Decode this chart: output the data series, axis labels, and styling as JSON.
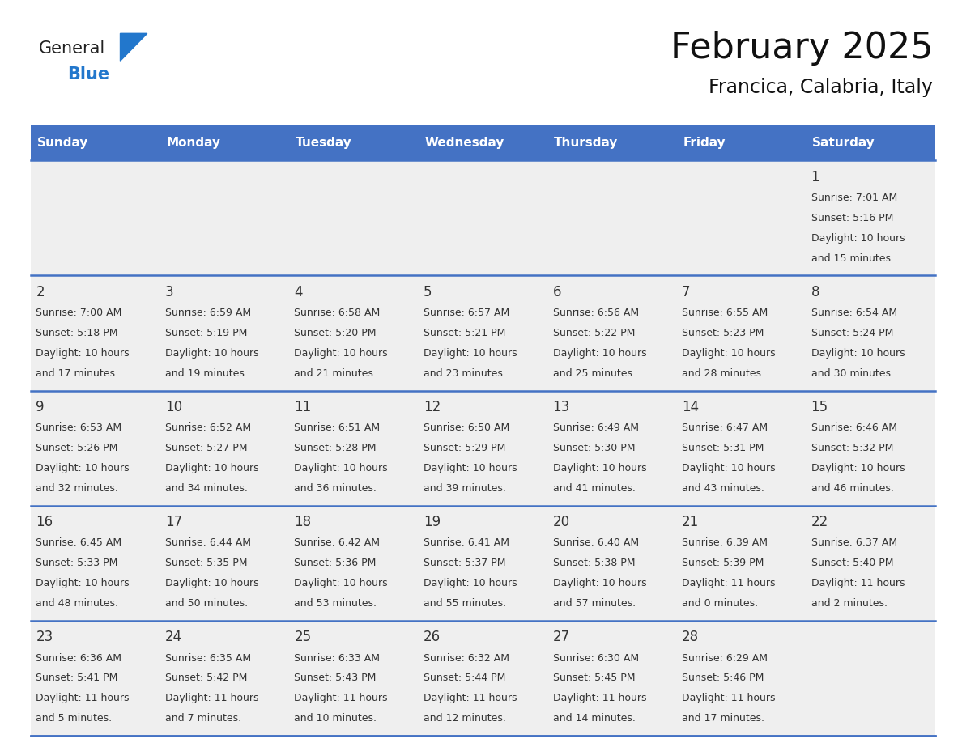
{
  "title": "February 2025",
  "subtitle": "Francica, Calabria, Italy",
  "days_of_week": [
    "Sunday",
    "Monday",
    "Tuesday",
    "Wednesday",
    "Thursday",
    "Friday",
    "Saturday"
  ],
  "header_bg": "#4472C4",
  "header_text": "#FFFFFF",
  "row_bg": "#EFEFEF",
  "separator_color": "#4472C4",
  "day_number_color": "#333333",
  "info_text_color": "#333333",
  "logo_text_color": "#222222",
  "logo_blue_color": "#2277CC",
  "calendar": [
    [
      null,
      null,
      null,
      null,
      null,
      null,
      {
        "day": 1,
        "sunrise": "7:01 AM",
        "sunset": "5:16 PM",
        "daylight": "10 hours and 15 minutes."
      }
    ],
    [
      {
        "day": 2,
        "sunrise": "7:00 AM",
        "sunset": "5:18 PM",
        "daylight": "10 hours and 17 minutes."
      },
      {
        "day": 3,
        "sunrise": "6:59 AM",
        "sunset": "5:19 PM",
        "daylight": "10 hours and 19 minutes."
      },
      {
        "day": 4,
        "sunrise": "6:58 AM",
        "sunset": "5:20 PM",
        "daylight": "10 hours and 21 minutes."
      },
      {
        "day": 5,
        "sunrise": "6:57 AM",
        "sunset": "5:21 PM",
        "daylight": "10 hours and 23 minutes."
      },
      {
        "day": 6,
        "sunrise": "6:56 AM",
        "sunset": "5:22 PM",
        "daylight": "10 hours and 25 minutes."
      },
      {
        "day": 7,
        "sunrise": "6:55 AM",
        "sunset": "5:23 PM",
        "daylight": "10 hours and 28 minutes."
      },
      {
        "day": 8,
        "sunrise": "6:54 AM",
        "sunset": "5:24 PM",
        "daylight": "10 hours and 30 minutes."
      }
    ],
    [
      {
        "day": 9,
        "sunrise": "6:53 AM",
        "sunset": "5:26 PM",
        "daylight": "10 hours and 32 minutes."
      },
      {
        "day": 10,
        "sunrise": "6:52 AM",
        "sunset": "5:27 PM",
        "daylight": "10 hours and 34 minutes."
      },
      {
        "day": 11,
        "sunrise": "6:51 AM",
        "sunset": "5:28 PM",
        "daylight": "10 hours and 36 minutes."
      },
      {
        "day": 12,
        "sunrise": "6:50 AM",
        "sunset": "5:29 PM",
        "daylight": "10 hours and 39 minutes."
      },
      {
        "day": 13,
        "sunrise": "6:49 AM",
        "sunset": "5:30 PM",
        "daylight": "10 hours and 41 minutes."
      },
      {
        "day": 14,
        "sunrise": "6:47 AM",
        "sunset": "5:31 PM",
        "daylight": "10 hours and 43 minutes."
      },
      {
        "day": 15,
        "sunrise": "6:46 AM",
        "sunset": "5:32 PM",
        "daylight": "10 hours and 46 minutes."
      }
    ],
    [
      {
        "day": 16,
        "sunrise": "6:45 AM",
        "sunset": "5:33 PM",
        "daylight": "10 hours and 48 minutes."
      },
      {
        "day": 17,
        "sunrise": "6:44 AM",
        "sunset": "5:35 PM",
        "daylight": "10 hours and 50 minutes."
      },
      {
        "day": 18,
        "sunrise": "6:42 AM",
        "sunset": "5:36 PM",
        "daylight": "10 hours and 53 minutes."
      },
      {
        "day": 19,
        "sunrise": "6:41 AM",
        "sunset": "5:37 PM",
        "daylight": "10 hours and 55 minutes."
      },
      {
        "day": 20,
        "sunrise": "6:40 AM",
        "sunset": "5:38 PM",
        "daylight": "10 hours and 57 minutes."
      },
      {
        "day": 21,
        "sunrise": "6:39 AM",
        "sunset": "5:39 PM",
        "daylight": "11 hours and 0 minutes."
      },
      {
        "day": 22,
        "sunrise": "6:37 AM",
        "sunset": "5:40 PM",
        "daylight": "11 hours and 2 minutes."
      }
    ],
    [
      {
        "day": 23,
        "sunrise": "6:36 AM",
        "sunset": "5:41 PM",
        "daylight": "11 hours and 5 minutes."
      },
      {
        "day": 24,
        "sunrise": "6:35 AM",
        "sunset": "5:42 PM",
        "daylight": "11 hours and 7 minutes."
      },
      {
        "day": 25,
        "sunrise": "6:33 AM",
        "sunset": "5:43 PM",
        "daylight": "11 hours and 10 minutes."
      },
      {
        "day": 26,
        "sunrise": "6:32 AM",
        "sunset": "5:44 PM",
        "daylight": "11 hours and 12 minutes."
      },
      {
        "day": 27,
        "sunrise": "6:30 AM",
        "sunset": "5:45 PM",
        "daylight": "11 hours and 14 minutes."
      },
      {
        "day": 28,
        "sunrise": "6:29 AM",
        "sunset": "5:46 PM",
        "daylight": "11 hours and 17 minutes."
      },
      null
    ]
  ],
  "fig_width": 11.88,
  "fig_height": 9.18
}
